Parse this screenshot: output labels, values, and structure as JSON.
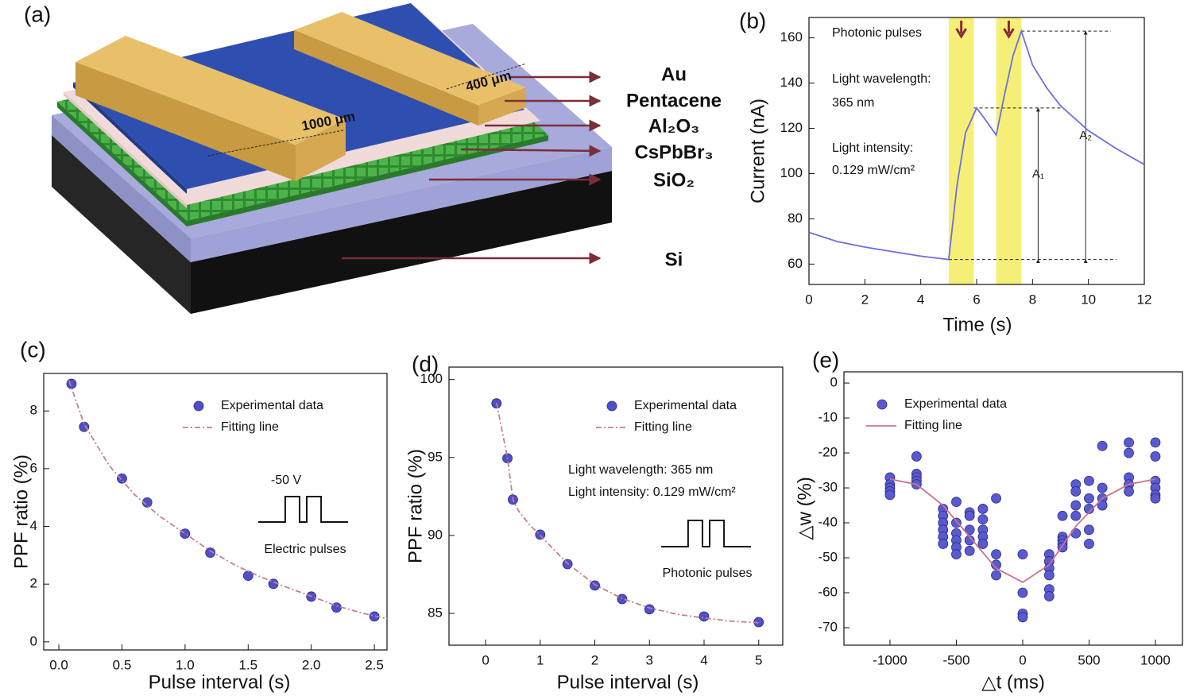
{
  "diagram": {
    "label": "(a)",
    "layers": [
      "Au",
      "Pentacene",
      "Al₂O₃",
      "CsPbBr₃",
      "SiO₂",
      "Si"
    ],
    "dimensions": [
      "1000 μm",
      "400 μm"
    ]
  },
  "chart_data": [
    {
      "type": "line",
      "label": "(b)",
      "xlabel": "Time (s)",
      "ylabel": "Current (nA)",
      "xlim": [
        0,
        12
      ],
      "ylim": [
        51,
        169
      ],
      "xticks": [
        0,
        2,
        4,
        6,
        8,
        10,
        12
      ],
      "yticks": [
        60,
        80,
        100,
        120,
        140,
        160
      ],
      "series": [
        {
          "type": "line",
          "color": "#6d6ee0",
          "x": [
            0,
            1,
            2,
            3,
            4,
            5,
            5.3,
            5.6,
            6,
            6.3,
            6.7,
            7,
            7.3,
            7.6,
            8,
            8.5,
            9,
            10,
            11,
            12
          ],
          "values": [
            74,
            70,
            67.5,
            65.5,
            63.5,
            62,
            95,
            118,
            129,
            124,
            117,
            135,
            152,
            163,
            148,
            138,
            130,
            119,
            111,
            104
          ]
        }
      ],
      "highlights": [
        [
          5,
          5.9
        ],
        [
          6.7,
          7.6
        ]
      ],
      "highlight_color": "#f5ef78",
      "ref_lines": [
        {
          "y": 62,
          "x": [
            5,
            11
          ]
        },
        {
          "y": 129,
          "x": [
            5.9,
            9
          ]
        },
        {
          "y": 163,
          "x": [
            7.6,
            10.8
          ]
        }
      ],
      "brackets": [
        {
          "label": "A₁",
          "x": 8.2,
          "y": [
            62,
            129
          ]
        },
        {
          "label": "A₂",
          "x": 9.9,
          "y": [
            62,
            163
          ]
        }
      ],
      "annotations": [
        "Photonic pulses",
        "Light wavelength:",
        "365 nm",
        "Light intensity:",
        "0.129 mW/cm²"
      ]
    },
    {
      "type": "scatter",
      "label": "(c)",
      "xlabel": "Pulse interval (s)",
      "ylabel": "PPF ratio (%)",
      "xlim": [
        -0.12,
        2.6
      ],
      "ylim": [
        -0.28,
        9.3
      ],
      "xticks": [
        {
          "value": 0,
          "label": "0.0"
        },
        0.5,
        {
          "value": 1,
          "label": "1.0"
        },
        1.5,
        {
          "value": 2,
          "label": "2.0"
        },
        2.5
      ],
      "yticks": [
        0,
        2,
        4,
        6,
        8
      ],
      "series": [
        {
          "name": "Experimental data",
          "type": "scatter",
          "color": "#4f4fc8",
          "x": [
            0.1,
            0.2,
            0.5,
            0.7,
            1.0,
            1.2,
            1.5,
            1.7,
            2.0,
            2.2,
            2.5
          ],
          "values": [
            8.94,
            7.45,
            5.66,
            4.83,
            3.75,
            3.09,
            2.29,
            2.01,
            1.57,
            1.19,
            0.88
          ]
        },
        {
          "name": "Fitting line",
          "type": "line",
          "color": "#c97f8e",
          "dash": true,
          "x": [
            0.08,
            0.2,
            0.4,
            0.6,
            0.8,
            1.0,
            1.2,
            1.4,
            1.6,
            1.8,
            2.0,
            2.2,
            2.4,
            2.6
          ],
          "values": [
            9.05,
            7.55,
            6.1,
            5.1,
            4.35,
            3.75,
            3.15,
            2.65,
            2.25,
            1.9,
            1.58,
            1.25,
            1.0,
            0.8
          ]
        }
      ],
      "annotations": [
        "-50 V",
        "Electric pulses"
      ]
    },
    {
      "type": "scatter",
      "label": "(d)",
      "xlabel": "Pulse interval (s)",
      "ylabel": "PPF ratio (%)",
      "xlim": [
        -0.67,
        5.44
      ],
      "ylim": [
        82.96,
        100.8
      ],
      "xticks": [
        0,
        1,
        2,
        3,
        4,
        5
      ],
      "yticks": [
        85,
        90,
        95,
        100
      ],
      "series": [
        {
          "name": "Experimental data",
          "type": "scatter",
          "color": "#4f4fc8",
          "x": [
            0.2,
            0.4,
            0.5,
            1,
            1.5,
            2,
            2.5,
            3,
            4,
            5
          ],
          "values": [
            98.47,
            94.95,
            92.3,
            90.05,
            88.16,
            86.79,
            85.92,
            85.26,
            84.8,
            84.44
          ]
        },
        {
          "name": "Fitting line",
          "type": "line",
          "color": "#c97f8e",
          "dash": true,
          "x": [
            0.2,
            0.4,
            0.5,
            0.6,
            0.8,
            1,
            1.5,
            2,
            2.5,
            3,
            3.5,
            4,
            4.5,
            5
          ],
          "values": [
            98.5,
            95.0,
            92.3,
            91.6,
            90.7,
            90.0,
            88.2,
            86.85,
            85.95,
            85.35,
            84.95,
            84.7,
            84.5,
            84.4
          ]
        }
      ],
      "annotations": [
        "Light wavelength: 365 nm",
        "Light intensity: 0.129 mW/cm²",
        "Photonic pulses"
      ]
    },
    {
      "type": "scatter",
      "label": "(e)",
      "xlabel": "△t (ms)",
      "ylabel": "△w (%)",
      "xlim": [
        -1347,
        1204
      ],
      "ylim": [
        -75,
        3.2
      ],
      "xticks": [
        -1000,
        -500,
        0,
        500,
        1000
      ],
      "yticks": [
        0,
        -10,
        -20,
        -30,
        -40,
        -50,
        -60,
        -70
      ],
      "series": [
        {
          "name": "Experimental data",
          "type": "scatter",
          "color": "#5a5ad0",
          "x": [
            -1000,
            -1000,
            -1000,
            -1000,
            -1000,
            -800,
            -800,
            -800,
            -800,
            -800,
            -600,
            -600,
            -600,
            -600,
            -600,
            -600,
            -500,
            -500,
            -500,
            -500,
            -500,
            -500,
            -400,
            -400,
            -400,
            -400,
            -400,
            -300,
            -300,
            -300,
            -300,
            -300,
            -200,
            -200,
            -200,
            -200,
            0,
            0,
            0,
            0,
            200,
            200,
            200,
            200,
            200,
            200,
            300,
            300,
            300,
            300,
            300,
            400,
            400,
            400,
            400,
            400,
            500,
            500,
            500,
            500,
            500,
            600,
            600,
            600,
            600,
            800,
            800,
            800,
            800,
            800,
            1000,
            1000,
            1000,
            1000,
            1000,
            1000
          ],
          "values": [
            -27,
            -29,
            -30,
            -31,
            -32,
            -21,
            -26,
            -27,
            -28,
            -29,
            -36,
            -38,
            -40,
            -42,
            -44,
            -46,
            -34,
            -40,
            -43,
            -45,
            -47,
            -49,
            -37,
            -38,
            -42,
            -45,
            -48,
            -36,
            -39,
            -42,
            -44,
            -46,
            -33,
            -49,
            -52,
            -55,
            -49,
            -60,
            -66,
            -67,
            -49,
            -51,
            -53,
            -55,
            -59,
            -61,
            -38,
            -44,
            -45,
            -46,
            -47,
            -29,
            -31,
            -35,
            -38,
            -43,
            -28,
            -33,
            -36,
            -42,
            -46,
            -18,
            -30,
            -33,
            -35,
            -17,
            -20,
            -27,
            -29,
            -31,
            -17,
            -21,
            -28,
            -30,
            -32,
            -33
          ]
        },
        {
          "name": "Fitting line",
          "type": "line",
          "color": "#d0708c",
          "x": [
            -1000,
            -800,
            -600,
            -400,
            -200,
            0,
            200,
            400,
            600,
            800,
            1000
          ],
          "values": [
            -27.5,
            -29,
            -35,
            -44,
            -53,
            -57,
            -52,
            -41,
            -33,
            -29,
            -27.5
          ]
        }
      ],
      "annotations": []
    }
  ]
}
